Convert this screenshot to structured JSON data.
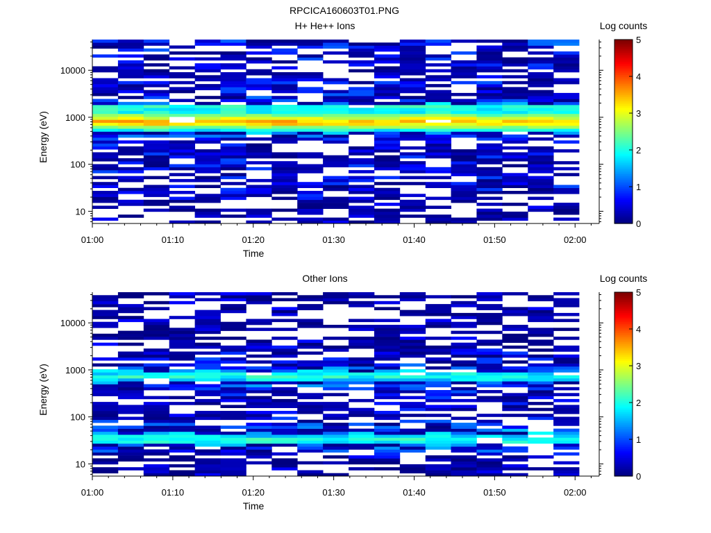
{
  "figure": {
    "title": "RPCICA160603T01.PNG"
  },
  "chart_data": [
    {
      "type": "heatmap",
      "title": "H+ He++ Ions",
      "xlabel": "Time",
      "ylabel": "Energy (eV)",
      "x_ticks": [
        "01:00",
        "01:10",
        "01:20",
        "01:30",
        "01:40",
        "01:50",
        "02:00"
      ],
      "y_ticks": [
        "10",
        "100",
        "1000",
        "10000"
      ],
      "y_scale": "log",
      "ylim": [
        5.5,
        45000
      ],
      "xlim": [
        "01:00",
        "02:03"
      ],
      "colorbar": {
        "label": "Log counts",
        "ticks": [
          "0",
          "1",
          "2",
          "3",
          "4",
          "5"
        ],
        "range": [
          0,
          5
        ],
        "colormap": "jet"
      },
      "description_of_values": "Dominant band near 700-1000 eV with log counts ~3-3.5; moderate values (~1.5-2.2) near 1500-2000 eV; sparse low values (0-1) elsewhere.",
      "profile": {
        "energy_eV": [
          8,
          15,
          25,
          40,
          70,
          120,
          200,
          350,
          500,
          700,
          850,
          1000,
          1300,
          1700,
          2200,
          3500,
          6000,
          10000,
          20000,
          35000
        ],
        "typical_log_counts": [
          0.2,
          0.3,
          0.5,
          0.6,
          0.6,
          0.6,
          0.5,
          0.6,
          1.6,
          3.2,
          3.4,
          2.8,
          1.9,
          2.0,
          1.0,
          0.8,
          0.6,
          0.5,
          0.6,
          0.8
        ]
      }
    },
    {
      "type": "heatmap",
      "title": "Other Ions",
      "xlabel": "Time",
      "ylabel": "Energy (eV)",
      "x_ticks": [
        "01:00",
        "01:10",
        "01:20",
        "01:30",
        "01:40",
        "01:50",
        "02:00"
      ],
      "y_ticks": [
        "10",
        "100",
        "1000",
        "10000"
      ],
      "y_scale": "log",
      "ylim": [
        5.5,
        45000
      ],
      "xlim": [
        "01:00",
        "02:03"
      ],
      "colorbar": {
        "label": "Log counts",
        "ticks": [
          "0",
          "1",
          "2",
          "3",
          "4",
          "5"
        ],
        "range": [
          0,
          5
        ],
        "colormap": "jet"
      },
      "description_of_values": "Band near 700-900 eV with log counts ~1.8-2.2; second band near 25-45 eV with log counts ~1.5-2.5; sparse low values elsewhere.",
      "profile": {
        "energy_eV": [
          8,
          15,
          25,
          32,
          40,
          60,
          100,
          200,
          400,
          700,
          850,
          1200,
          1800,
          3000,
          6000,
          10000,
          20000,
          35000
        ],
        "typical_log_counts": [
          0.2,
          0.3,
          1.4,
          2.1,
          1.7,
          0.9,
          0.5,
          0.4,
          0.7,
          2.0,
          1.8,
          0.8,
          0.7,
          0.3,
          0.2,
          0.2,
          0.2,
          0.2
        ]
      }
    }
  ]
}
